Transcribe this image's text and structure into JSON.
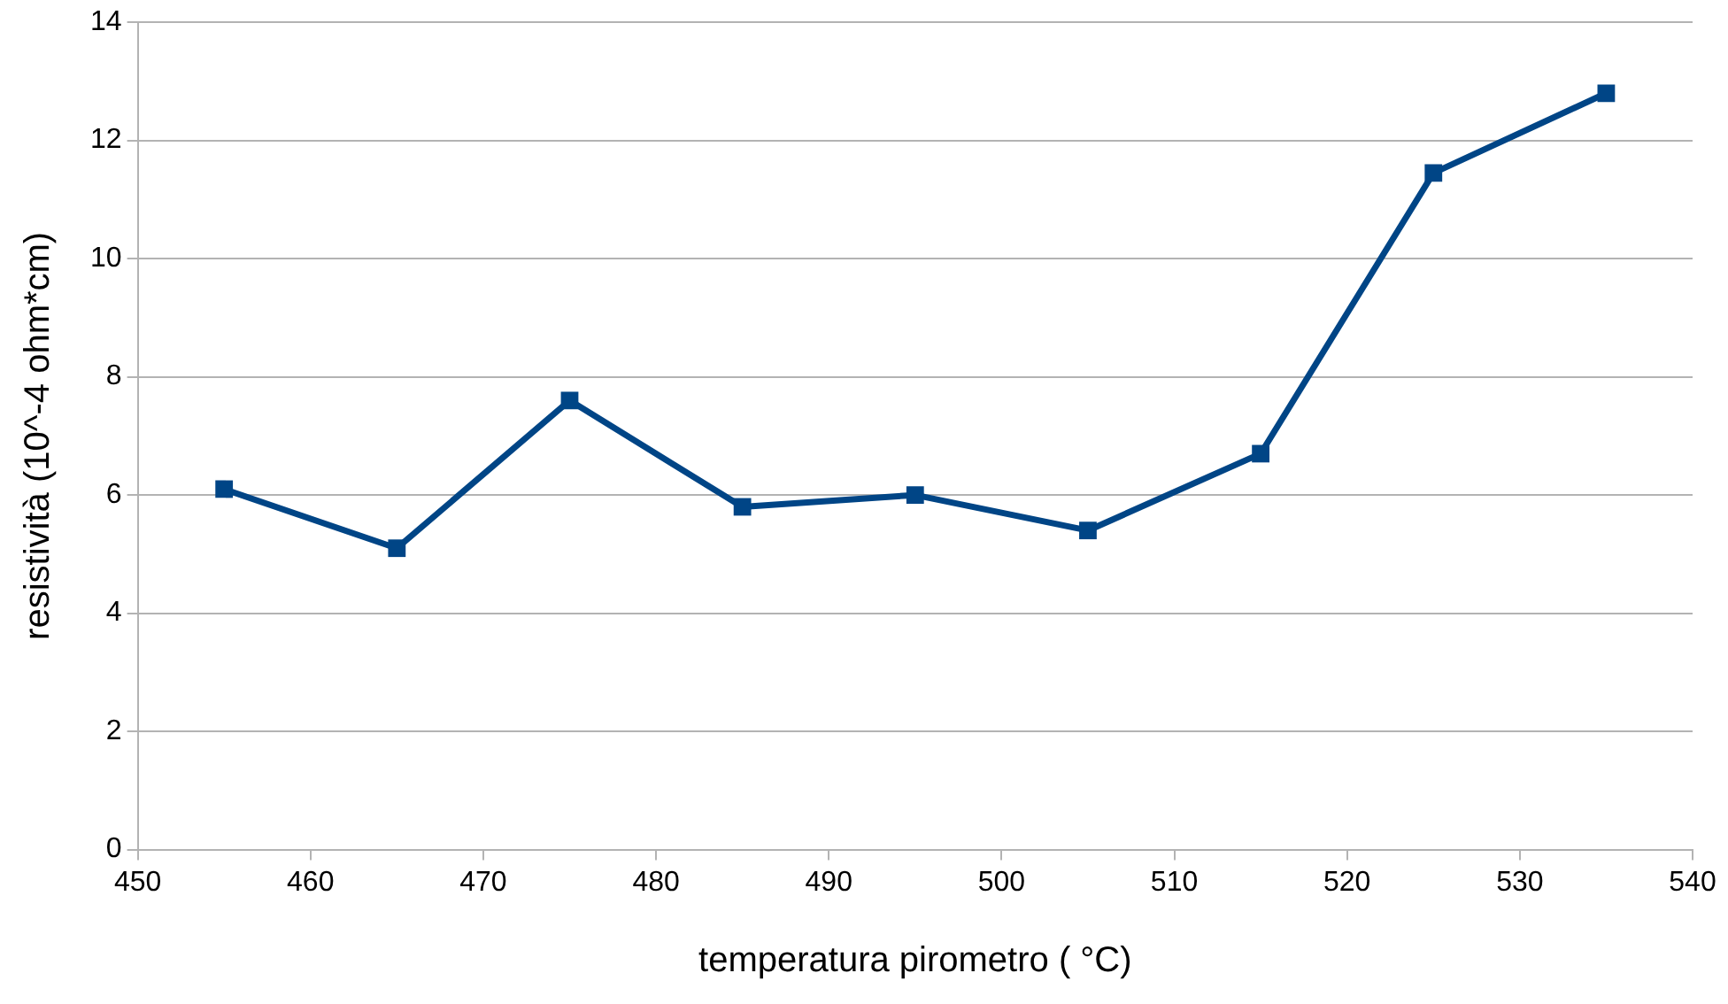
{
  "chart_data": {
    "type": "line",
    "xlabel": "temperatura pirometro ( °C)",
    "ylabel": "resistività (10^-4 ohm*cm)",
    "x": [
      455,
      465,
      475,
      485,
      495,
      505,
      515,
      525,
      535
    ],
    "series": [
      {
        "color": "#004586",
        "values": [
          6.1,
          5.1,
          7.6,
          5.8,
          6.0,
          5.4,
          6.7,
          11.45,
          12.8
        ]
      }
    ],
    "xlim": [
      450,
      540
    ],
    "xticks": [
      450,
      460,
      470,
      480,
      490,
      500,
      510,
      520,
      530,
      540
    ],
    "ylim": [
      0,
      14
    ],
    "yticks": [
      0,
      2,
      4,
      6,
      8,
      10,
      12,
      14
    ],
    "grid": "y",
    "legend": false,
    "marker": "square",
    "line_style": "solid"
  }
}
